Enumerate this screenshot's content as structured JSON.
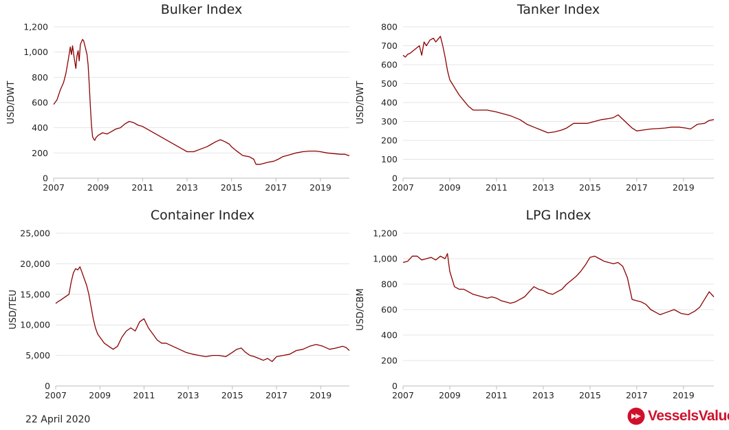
{
  "footer": {
    "date": "22 April 2020",
    "brand": "VesselsValue",
    "brand_icon": "vesselsvalue-logo-icon",
    "brand_color": "#d0102b"
  },
  "series_color": "#8b0000",
  "chart_data": [
    {
      "id": "bulker",
      "type": "line",
      "title": "Bulker Index",
      "xlabel": "",
      "ylabel": "USD/DWT",
      "xlim": [
        2007,
        2020.3
      ],
      "ylim": [
        0,
        1200
      ],
      "xticks": [
        "2007",
        "2009",
        "2011",
        "2013",
        "2015",
        "2017",
        "2019"
      ],
      "yticks": [
        "0",
        "200",
        "400",
        "600",
        "800",
        "1,000",
        "1,200"
      ],
      "grid": true,
      "x": [
        2007.0,
        2007.15,
        2007.3,
        2007.45,
        2007.55,
        2007.65,
        2007.75,
        2007.8,
        2007.85,
        2007.92,
        2008.0,
        2008.05,
        2008.1,
        2008.15,
        2008.2,
        2008.3,
        2008.35,
        2008.42,
        2008.5,
        2008.55,
        2008.6,
        2008.65,
        2008.7,
        2008.75,
        2008.8,
        2008.85,
        2008.9,
        2009.0,
        2009.2,
        2009.4,
        2009.6,
        2009.8,
        2010.0,
        2010.2,
        2010.4,
        2010.6,
        2010.8,
        2011.0,
        2011.3,
        2011.6,
        2011.9,
        2012.2,
        2012.5,
        2012.8,
        2013.0,
        2013.3,
        2013.6,
        2013.9,
        2014.1,
        2014.3,
        2014.5,
        2014.7,
        2014.9,
        2015.0,
        2015.2,
        2015.5,
        2015.8,
        2016.0,
        2016.1,
        2016.3,
        2016.6,
        2016.9,
        2017.1,
        2017.3,
        2017.6,
        2017.9,
        2018.2,
        2018.5,
        2018.8,
        2019.0,
        2019.3,
        2019.6,
        2019.9,
        2020.1,
        2020.3
      ],
      "y": [
        585,
        620,
        700,
        760,
        830,
        930,
        1040,
        980,
        1050,
        960,
        870,
        970,
        1010,
        930,
        1060,
        1100,
        1090,
        1040,
        980,
        900,
        750,
        580,
        420,
        330,
        310,
        300,
        320,
        340,
        360,
        350,
        370,
        390,
        400,
        430,
        450,
        440,
        420,
        410,
        380,
        350,
        320,
        290,
        260,
        230,
        210,
        210,
        230,
        250,
        270,
        290,
        305,
        290,
        270,
        250,
        220,
        180,
        170,
        150,
        110,
        110,
        125,
        135,
        150,
        170,
        185,
        200,
        210,
        215,
        215,
        210,
        200,
        195,
        190,
        190,
        178
      ]
    },
    {
      "id": "tanker",
      "type": "line",
      "title": "Tanker Index",
      "xlabel": "",
      "ylabel": "USD/DWT",
      "xlim": [
        2007,
        2020.3
      ],
      "ylim": [
        0,
        800
      ],
      "xticks": [
        "2007",
        "2009",
        "2011",
        "2013",
        "2015",
        "2017",
        "2019"
      ],
      "yticks": [
        "0",
        "100",
        "200",
        "300",
        "400",
        "500",
        "600",
        "700",
        "800"
      ],
      "grid": true,
      "x": [
        2007.0,
        2007.1,
        2007.2,
        2007.3,
        2007.5,
        2007.7,
        2007.8,
        2007.9,
        2008.0,
        2008.15,
        2008.3,
        2008.4,
        2008.5,
        2008.6,
        2008.7,
        2008.8,
        2008.9,
        2009.0,
        2009.2,
        2009.4,
        2009.6,
        2009.8,
        2010.0,
        2010.3,
        2010.6,
        2011.0,
        2011.3,
        2011.6,
        2012.0,
        2012.3,
        2012.6,
        2012.9,
        2013.2,
        2013.5,
        2013.8,
        2014.0,
        2014.3,
        2014.6,
        2014.9,
        2015.2,
        2015.5,
        2015.8,
        2016.0,
        2016.2,
        2016.5,
        2016.8,
        2017.0,
        2017.3,
        2017.6,
        2017.9,
        2018.2,
        2018.5,
        2018.8,
        2019.1,
        2019.3,
        2019.6,
        2019.9,
        2020.1,
        2020.3
      ],
      "y": [
        650,
        640,
        655,
        660,
        680,
        700,
        650,
        720,
        700,
        730,
        740,
        720,
        735,
        750,
        700,
        640,
        570,
        520,
        480,
        440,
        410,
        380,
        360,
        360,
        360,
        350,
        340,
        330,
        310,
        285,
        270,
        255,
        240,
        245,
        255,
        265,
        290,
        290,
        290,
        300,
        310,
        315,
        320,
        335,
        300,
        265,
        250,
        255,
        260,
        262,
        265,
        270,
        270,
        265,
        260,
        285,
        290,
        305,
        310
      ]
    },
    {
      "id": "container",
      "type": "line",
      "title": "Container Index",
      "xlabel": "",
      "ylabel": "USD/TEU",
      "xlim": [
        2007,
        2020.3
      ],
      "ylim": [
        0,
        25000
      ],
      "xticks": [
        "2007",
        "2009",
        "2011",
        "2013",
        "2015",
        "2017",
        "2019"
      ],
      "yticks": [
        "0",
        "5,000",
        "10,000",
        "15,000",
        "20,000",
        "25,000"
      ],
      "grid": true,
      "x": [
        2007.0,
        2007.1,
        2007.2,
        2007.4,
        2007.6,
        2007.7,
        2007.8,
        2007.9,
        2008.0,
        2008.1,
        2008.2,
        2008.3,
        2008.4,
        2008.5,
        2008.6,
        2008.7,
        2008.8,
        2008.9,
        2009.0,
        2009.2,
        2009.4,
        2009.6,
        2009.8,
        2010.0,
        2010.2,
        2010.4,
        2010.6,
        2010.8,
        2011.0,
        2011.2,
        2011.4,
        2011.6,
        2011.8,
        2012.0,
        2012.3,
        2012.6,
        2012.9,
        2013.2,
        2013.5,
        2013.8,
        2014.1,
        2014.4,
        2014.7,
        2015.0,
        2015.2,
        2015.4,
        2015.6,
        2015.8,
        2016.0,
        2016.2,
        2016.4,
        2016.6,
        2016.8,
        2017.0,
        2017.3,
        2017.6,
        2017.9,
        2018.2,
        2018.5,
        2018.8,
        2019.1,
        2019.4,
        2019.7,
        2020.0,
        2020.15,
        2020.3
      ],
      "y": [
        13500,
        13800,
        14000,
        14500,
        15000,
        17000,
        18500,
        19200,
        19000,
        19500,
        18500,
        17500,
        16500,
        15000,
        13000,
        11000,
        9500,
        8500,
        8000,
        7000,
        6500,
        6000,
        6500,
        8000,
        9000,
        9500,
        9000,
        10500,
        11000,
        9500,
        8500,
        7500,
        7000,
        7000,
        6500,
        6000,
        5500,
        5200,
        5000,
        4800,
        5000,
        5000,
        4800,
        5500,
        6000,
        6200,
        5500,
        5000,
        4800,
        4500,
        4200,
        4500,
        4000,
        4800,
        5000,
        5200,
        5800,
        6000,
        6500,
        6800,
        6500,
        6000,
        6200,
        6500,
        6300,
        5800
      ]
    },
    {
      "id": "lpg",
      "type": "line",
      "title": "LPG Index",
      "xlabel": "",
      "ylabel": "USD/CBM",
      "xlim": [
        2007,
        2020.3
      ],
      "ylim": [
        0,
        1200
      ],
      "xticks": [
        "2007",
        "2009",
        "2011",
        "2013",
        "2015",
        "2017",
        "2019"
      ],
      "yticks": [
        "0",
        "200",
        "400",
        "600",
        "800",
        "1,000",
        "1,200"
      ],
      "grid": true,
      "x": [
        2007.0,
        2007.2,
        2007.4,
        2007.6,
        2007.8,
        2008.0,
        2008.2,
        2008.4,
        2008.6,
        2008.8,
        2008.9,
        2009.0,
        2009.2,
        2009.4,
        2009.6,
        2009.8,
        2010.0,
        2010.2,
        2010.4,
        2010.6,
        2010.8,
        2011.0,
        2011.2,
        2011.4,
        2011.6,
        2011.8,
        2012.0,
        2012.2,
        2012.4,
        2012.6,
        2012.8,
        2013.0,
        2013.2,
        2013.4,
        2013.6,
        2013.8,
        2014.0,
        2014.2,
        2014.4,
        2014.6,
        2014.8,
        2015.0,
        2015.2,
        2015.4,
        2015.6,
        2015.8,
        2016.0,
        2016.2,
        2016.4,
        2016.6,
        2016.8,
        2017.0,
        2017.2,
        2017.4,
        2017.6,
        2017.8,
        2018.0,
        2018.3,
        2018.6,
        2018.9,
        2019.2,
        2019.5,
        2019.7,
        2019.9,
        2020.1,
        2020.3
      ],
      "y": [
        970,
        980,
        1020,
        1020,
        990,
        1000,
        1010,
        990,
        1020,
        1000,
        1040,
        900,
        780,
        760,
        760,
        740,
        720,
        710,
        700,
        690,
        700,
        690,
        670,
        660,
        650,
        660,
        680,
        700,
        740,
        780,
        760,
        750,
        730,
        720,
        740,
        760,
        800,
        830,
        860,
        900,
        950,
        1010,
        1020,
        1000,
        980,
        970,
        960,
        970,
        940,
        850,
        680,
        670,
        660,
        640,
        600,
        580,
        560,
        580,
        600,
        570,
        560,
        590,
        620,
        680,
        740,
        700
      ]
    }
  ]
}
